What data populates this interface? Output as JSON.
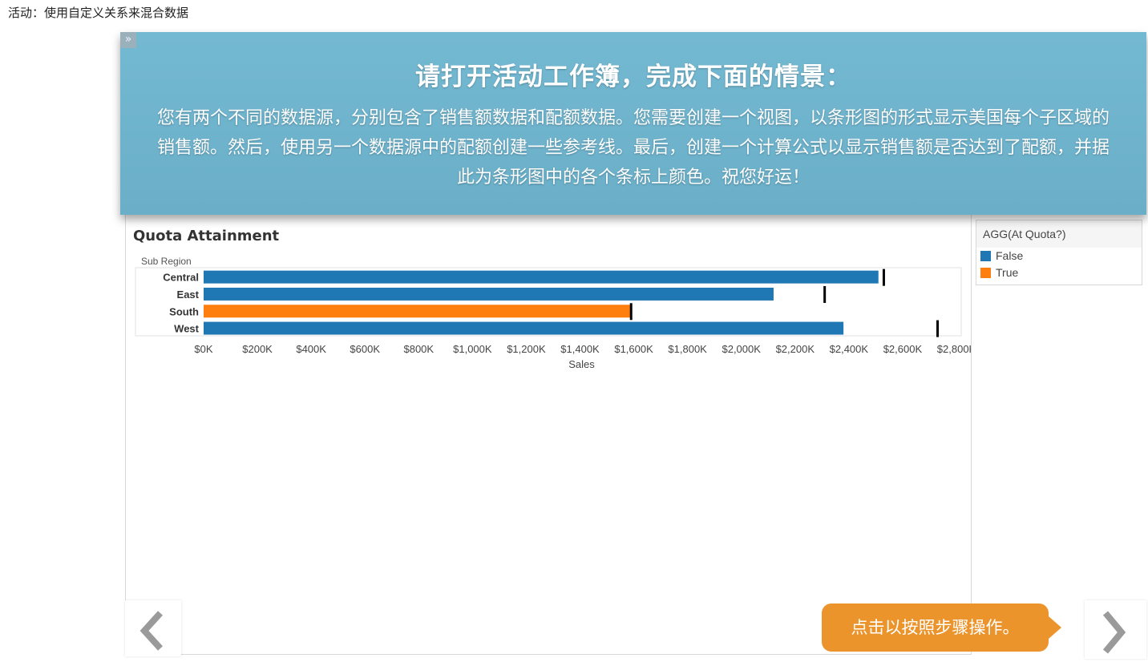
{
  "page": {
    "caption": "活动：使用自定义关系来混合数据"
  },
  "banner": {
    "toggle_glyph": "»",
    "title": "请打开活动工作簿，完成下面的情景：",
    "body": "您有两个不同的数据源，分别包含了销售额数据和配额数据。您需要创建一个视图，以条形图的形式显示美国每个子区域的销售额。然后，使用另一个数据源中的配额创建一些参考线。最后，创建一个计算公式以显示销售额是否达到了配额，并据此为条形图中的各个条标上颜色。祝您好运！"
  },
  "legend": {
    "title": "AGG(At Quota?)",
    "items": [
      {
        "label": "False",
        "color": "#1f77b4"
      },
      {
        "label": "True",
        "color": "#ff7f0e"
      }
    ]
  },
  "chart_data": {
    "type": "bar",
    "orientation": "horizontal",
    "title": "Quota Attainment",
    "row_header": "Sub Region",
    "xlabel": "Sales",
    "ylabel": "",
    "xlim": [
      0,
      2800000
    ],
    "tick_values": [
      0,
      200000,
      400000,
      600000,
      800000,
      1000000,
      1200000,
      1400000,
      1600000,
      1800000,
      2000000,
      2200000,
      2400000,
      2600000,
      2800000
    ],
    "tick_labels": [
      "$0K",
      "$200K",
      "$400K",
      "$600K",
      "$800K",
      "$1,000K",
      "$1,200K",
      "$1,400K",
      "$1,600K",
      "$1,800K",
      "$2,000K",
      "$2,200K",
      "$2,400K",
      "$2,600K",
      "$2,800K"
    ],
    "categories": [
      "Central",
      "East",
      "South",
      "West"
    ],
    "values": [
      2510000,
      2120000,
      1590000,
      2380000
    ],
    "quota_reference_lines": [
      2530000,
      2310000,
      1590000,
      2730000
    ],
    "at_quota": [
      "False",
      "False",
      "True",
      "False"
    ],
    "colors": {
      "False": "#1f77b4",
      "True": "#ff7f0e",
      "reference_line": "#000000"
    },
    "grid": false
  },
  "hint": {
    "text": "点击以按照步骤操作。"
  },
  "nav": {
    "prev_icon": "chevron-left-icon",
    "next_icon": "chevron-right-icon"
  }
}
